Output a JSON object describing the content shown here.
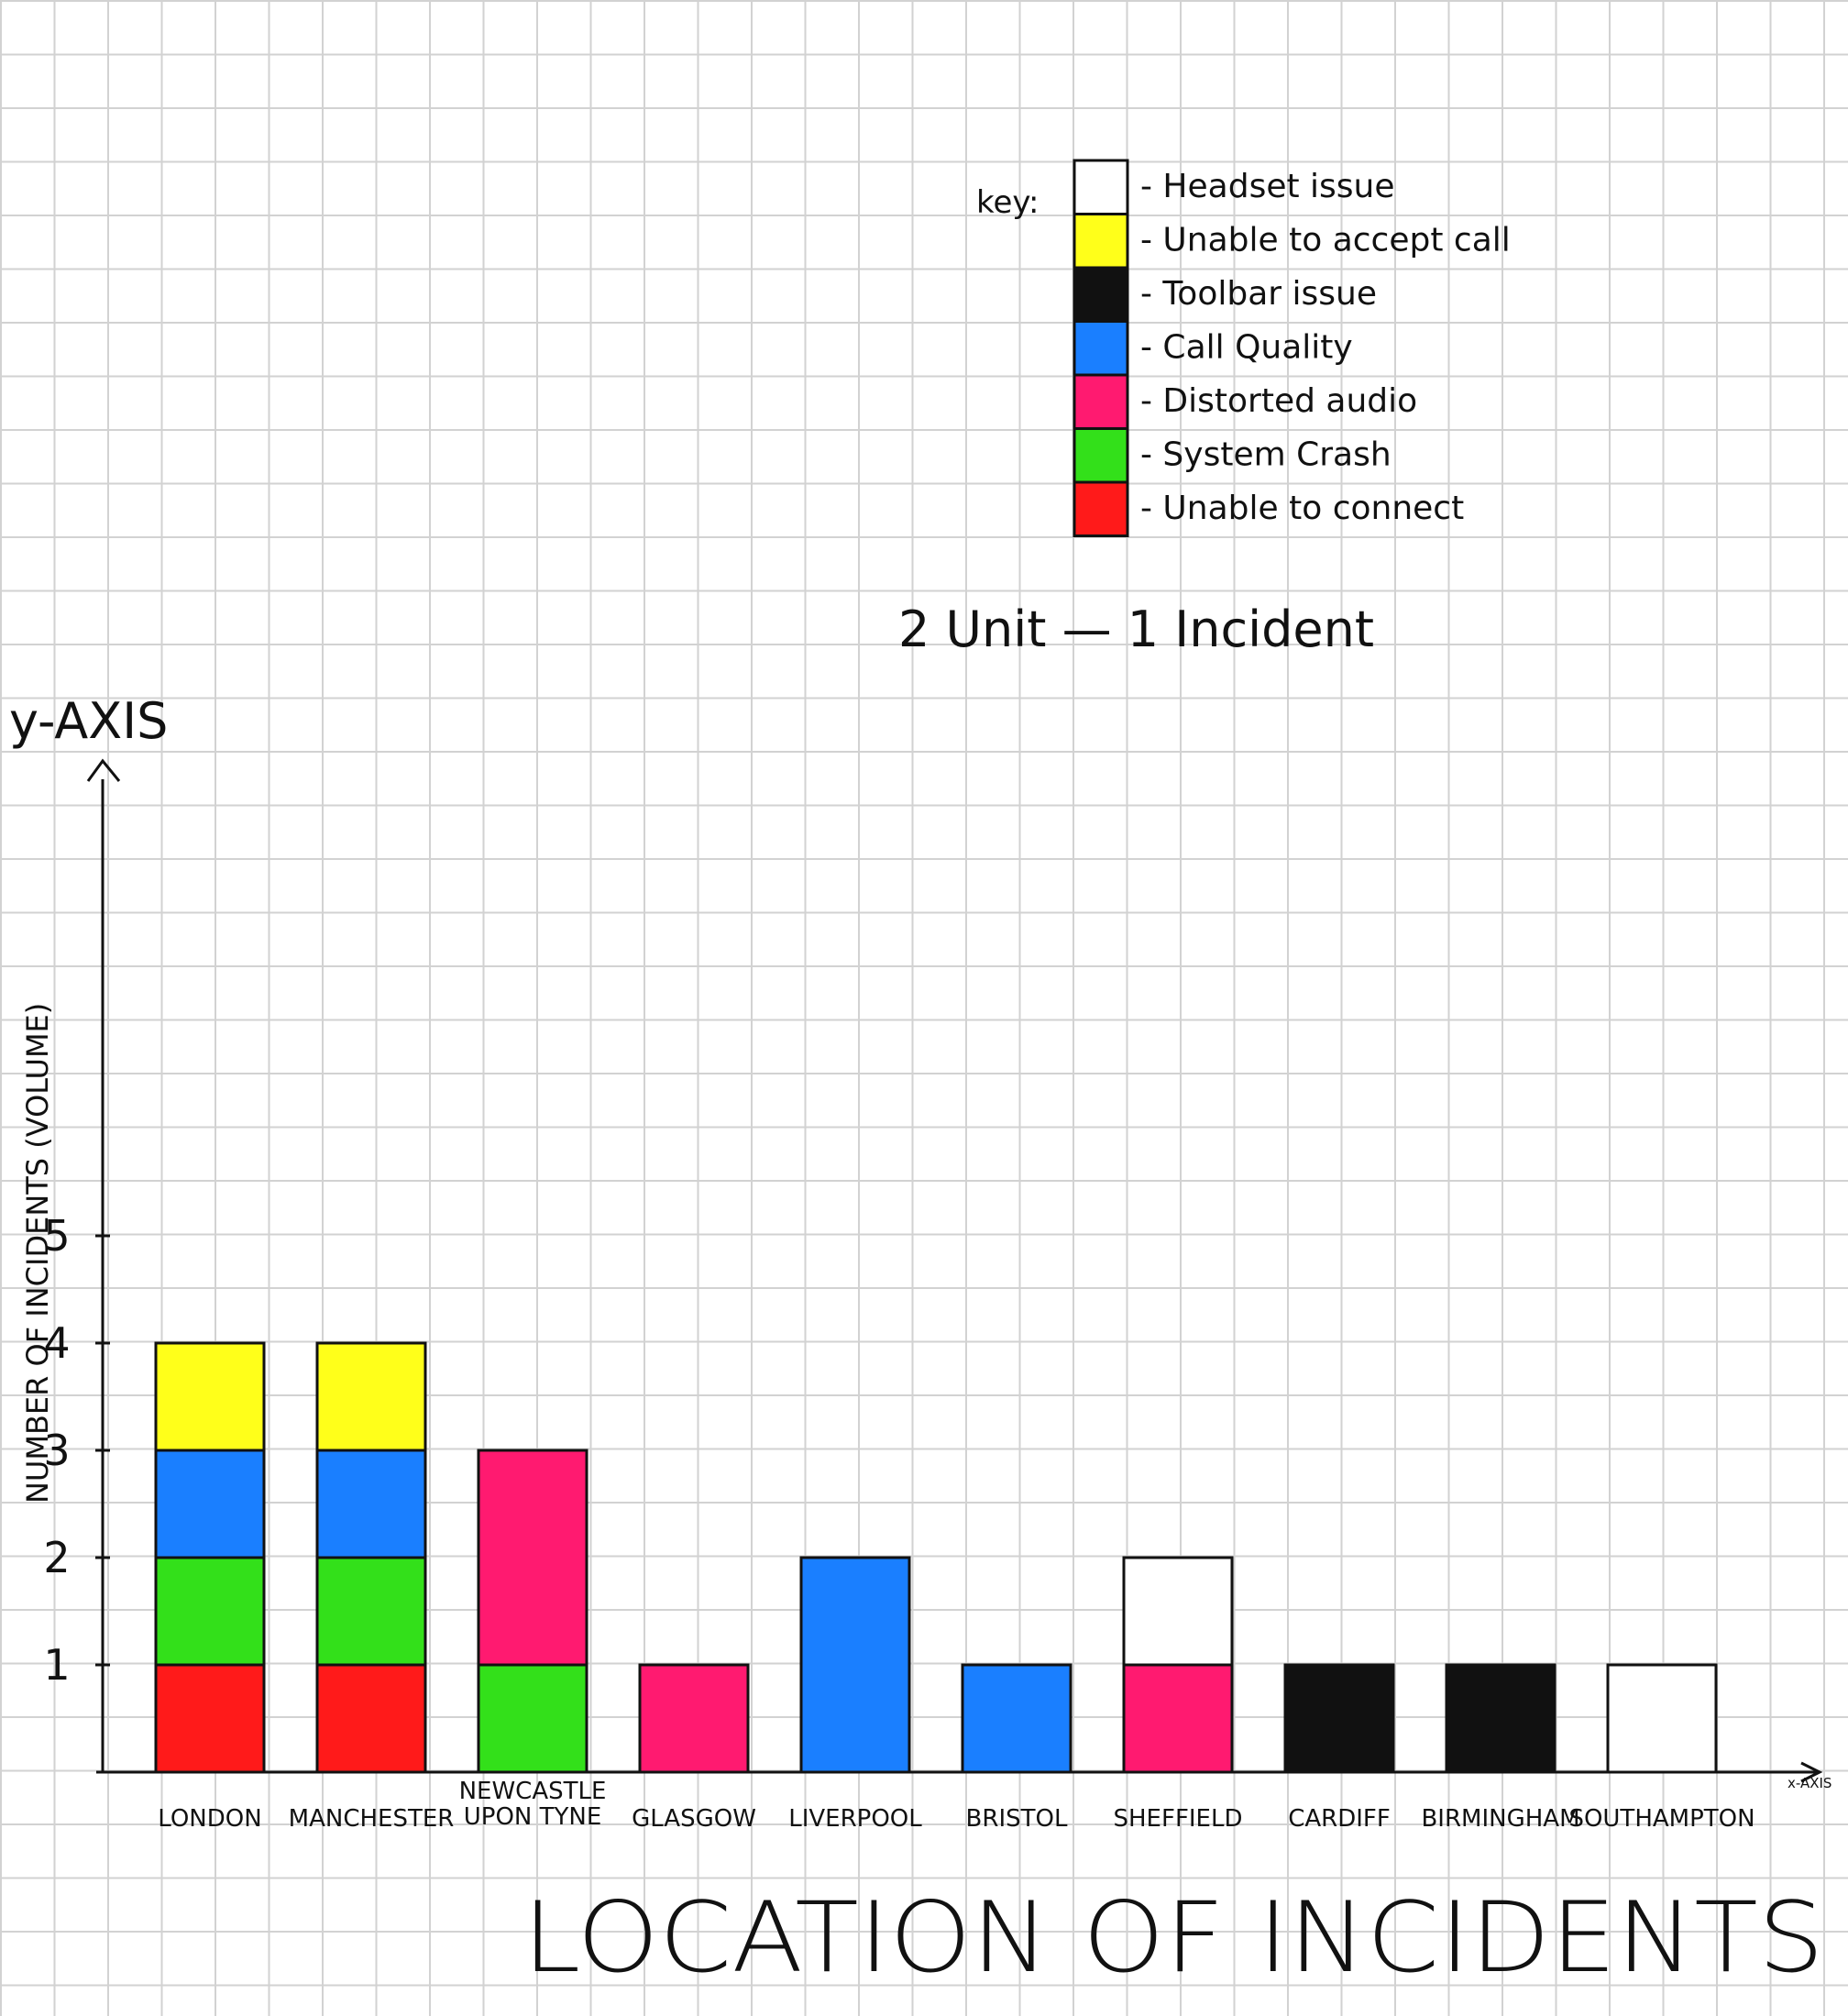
{
  "chart_data": {
    "type": "bar",
    "stacked": true,
    "title": "LOCATION OF INCIDENTS",
    "ylabel": "NUMBER OF INCIDENTS (VOLUME)",
    "y_axis_name": "y-AXIS",
    "x_axis_name": "x-AXIS",
    "scale_note": "2 Unit — 1 Incident",
    "key_label": "key:",
    "y_ticks": [
      "1",
      "2",
      "3",
      "4",
      "5"
    ],
    "ylim": [
      0,
      5
    ],
    "grid": true,
    "legend_position": "top-right",
    "categories": [
      "LONDON",
      "MANCHESTER",
      "NEWCASTLE UPON TYNE",
      "GLASGOW",
      "LIVERPOOL",
      "BRISTOL",
      "SHEFFIELD",
      "CARDIFF",
      "BIRMINGHAM",
      "SOUTHAMPTON"
    ],
    "category_lines": [
      [
        "LONDON"
      ],
      [
        "MANCHESTER"
      ],
      [
        "NEWCASTLE",
        "UPON TYNE"
      ],
      [
        "GLASGOW"
      ],
      [
        "LIVERPOOL"
      ],
      [
        "BRISTOL"
      ],
      [
        "SHEFFIELD"
      ],
      [
        "CARDIFF"
      ],
      [
        "BIRMINGHAM"
      ],
      [
        "SOUTHAMPTON"
      ]
    ],
    "series": [
      {
        "name": "Unable to connect",
        "color": "#ff1a1a",
        "values": [
          1,
          1,
          0,
          0,
          0,
          0,
          0,
          0,
          0,
          0
        ]
      },
      {
        "name": "System Crash",
        "color": "#33e01a",
        "values": [
          1,
          1,
          1,
          0,
          0,
          0,
          0,
          0,
          0,
          0
        ]
      },
      {
        "name": "Distorted audio",
        "color": "#ff1a70",
        "values": [
          0,
          0,
          2,
          1,
          0,
          0,
          1,
          0,
          0,
          0
        ]
      },
      {
        "name": "Call Quality",
        "color": "#1a7fff",
        "values": [
          1,
          1,
          0,
          0,
          2,
          1,
          0,
          0,
          0,
          0
        ]
      },
      {
        "name": "Toolbar issue",
        "color": "#111111",
        "values": [
          0,
          0,
          0,
          0,
          0,
          0,
          0,
          1,
          1,
          0
        ]
      },
      {
        "name": "Unable to accept call",
        "color": "#ffff1a",
        "values": [
          1,
          1,
          0,
          0,
          0,
          0,
          0,
          0,
          0,
          0
        ]
      },
      {
        "name": "Headset issue",
        "color": "#ffffff",
        "values": [
          0,
          0,
          0,
          0,
          0,
          0,
          1,
          0,
          0,
          1
        ]
      }
    ],
    "legend_order": [
      "Headset issue",
      "Unable to accept call",
      "Toolbar issue",
      "Call Quality",
      "Distorted audio",
      "System Crash",
      "Unable to connect"
    ]
  }
}
